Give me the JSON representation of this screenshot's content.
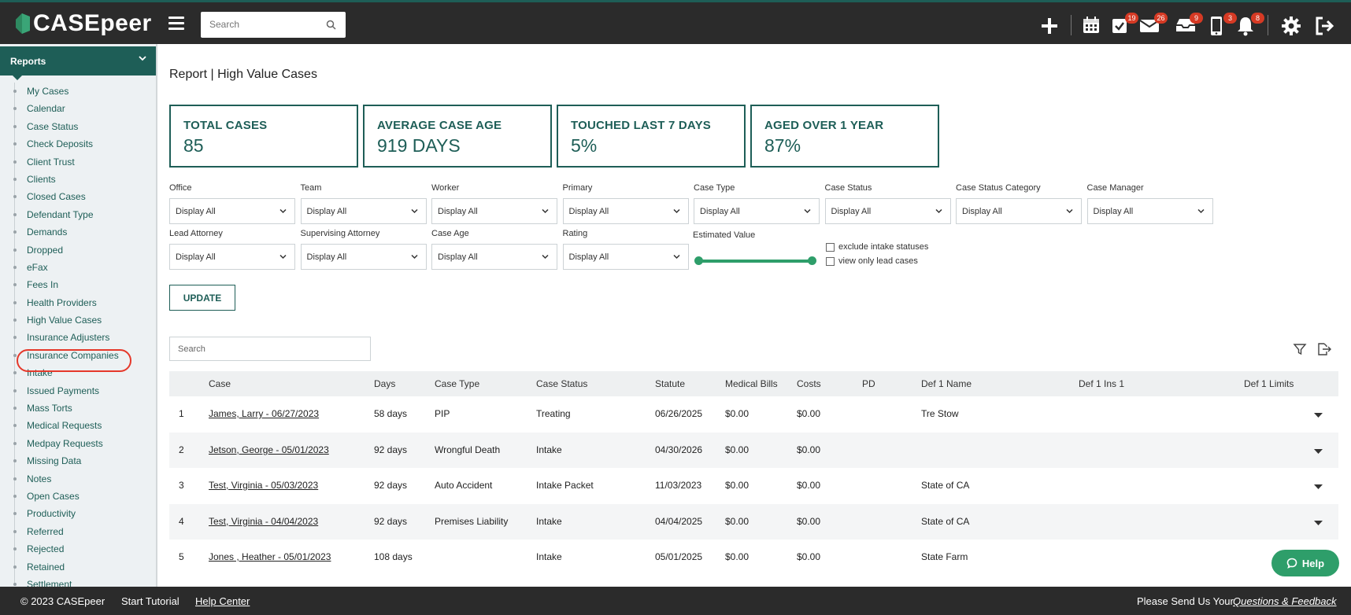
{
  "app": {
    "name": "CASEpeer"
  },
  "topbar": {
    "search_placeholder": "Search",
    "badges": {
      "tasks": "19",
      "mail": "26",
      "inbox": "9",
      "phone": "3",
      "notifications": "8"
    }
  },
  "sidebar": {
    "section": "Reports",
    "items": [
      "My Cases",
      "Calendar",
      "Case Status",
      "Check Deposits",
      "Client Trust",
      "Clients",
      "Closed Cases",
      "Defendant Type",
      "Demands",
      "Dropped",
      "eFax",
      "Fees In",
      "Health Providers",
      "High Value Cases",
      "Insurance Adjusters",
      "Insurance Companies",
      "Intake",
      "Issued Payments",
      "Mass Torts",
      "Medical Requests",
      "Medpay Requests",
      "Missing Data",
      "Notes",
      "Open Cases",
      "Productivity",
      "Referred",
      "Rejected",
      "Retained",
      "Settlement"
    ]
  },
  "page": {
    "title": "Report | High Value Cases"
  },
  "stats": [
    {
      "label": "TOTAL CASES",
      "value": "85"
    },
    {
      "label": "AVERAGE CASE AGE",
      "value": "919 DAYS"
    },
    {
      "label": "TOUCHED LAST 7 DAYS",
      "value": "5%"
    },
    {
      "label": "AGED OVER 1 YEAR",
      "value": "87%"
    }
  ],
  "filters": {
    "row1": [
      {
        "label": "Office",
        "value": "Display All"
      },
      {
        "label": "Team",
        "value": "Display All"
      },
      {
        "label": "Worker",
        "value": "Display All"
      },
      {
        "label": "Primary",
        "value": "Display All"
      },
      {
        "label": "Case Type",
        "value": "Display All"
      },
      {
        "label": "Case Status",
        "value": "Display All"
      },
      {
        "label": "Case Status Category",
        "value": "Display All"
      },
      {
        "label": "Case Manager",
        "value": "Display All"
      }
    ],
    "row2": [
      {
        "label": "Lead Attorney",
        "value": "Display All"
      },
      {
        "label": "Supervising Attorney",
        "value": "Display All"
      },
      {
        "label": "Case Age",
        "value": "Display All"
      },
      {
        "label": "Rating",
        "value": "Display All"
      }
    ],
    "estimated_value_label": "Estimated Value",
    "checkboxes": [
      "exclude intake statuses",
      "view only lead cases"
    ],
    "update_label": "UPDATE"
  },
  "table": {
    "search_placeholder": "Search",
    "columns": [
      "Case",
      "Days",
      "Case Type",
      "Case Status",
      "Statute",
      "Medical Bills",
      "Costs",
      "PD",
      "Def 1 Name",
      "Def 1 Ins 1",
      "Def 1 Limits"
    ],
    "rows": [
      {
        "num": "1",
        "case": "James, Larry - 06/27/2023",
        "days": "58 days",
        "type": "PIP",
        "status": "Treating",
        "statute": "06/26/2025",
        "medical": "$0.00",
        "costs": "$0.00",
        "pd": "",
        "def1": "Tre Stow",
        "ins": "",
        "limits": ""
      },
      {
        "num": "2",
        "case": "Jetson, George - 05/01/2023",
        "days": "92 days",
        "type": "Wrongful Death",
        "status": "Intake",
        "statute": "04/30/2026",
        "medical": "$0.00",
        "costs": "$0.00",
        "pd": "",
        "def1": "",
        "ins": "",
        "limits": ""
      },
      {
        "num": "3",
        "case": "Test, Virginia - 05/03/2023",
        "days": "92 days",
        "type": "Auto Accident",
        "status": "Intake Packet",
        "statute": "11/03/2023",
        "medical": "$0.00",
        "costs": "$0.00",
        "pd": "",
        "def1": "State of CA",
        "ins": "",
        "limits": ""
      },
      {
        "num": "4",
        "case": "Test, Virginia - 04/04/2023",
        "days": "92 days",
        "type": "Premises Liability",
        "status": "Intake",
        "statute": "04/04/2025",
        "medical": "$0.00",
        "costs": "$0.00",
        "pd": "",
        "def1": "State of CA",
        "ins": "",
        "limits": ""
      },
      {
        "num": "5",
        "case": "Jones , Heather - 05/01/2023",
        "days": "108 days",
        "type": "",
        "status": "Intake",
        "statute": "05/01/2025",
        "medical": "$0.00",
        "costs": "$0.00",
        "pd": "",
        "def1": "State Farm",
        "ins": "",
        "limits": ""
      }
    ]
  },
  "help": {
    "label": "Help"
  },
  "footer": {
    "copyright": "© 2023 CASEpeer",
    "tutorial": "Start Tutorial",
    "help_center": "Help Center",
    "feedback_prefix": "Please Send Us Your",
    "feedback_link": "Questions & Feedback"
  },
  "colors": {
    "brand": "#1e5e57",
    "accent_green": "#2e9e6a",
    "badge_red": "#d63a24",
    "topbar": "#2b2b2b"
  }
}
